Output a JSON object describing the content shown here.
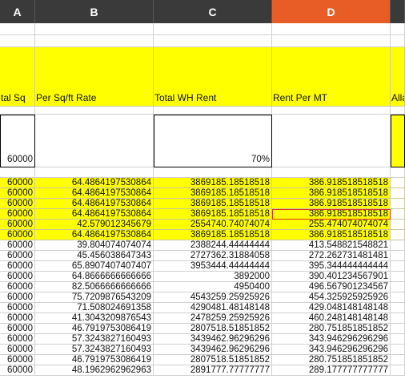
{
  "columns": [
    {
      "letter": "A",
      "selected": false
    },
    {
      "letter": "B",
      "selected": false
    },
    {
      "letter": "C",
      "selected": false
    },
    {
      "letter": "D",
      "selected": true
    }
  ],
  "headers": {
    "a": "tal Sq",
    "b": "Per Sq/ft Rate",
    "c": "Total WH Rent",
    "d": "Rent Per MT",
    "e": "Alla"
  },
  "summary": {
    "a": "60000",
    "c": "70%"
  },
  "rows": [
    {
      "a": "60000",
      "b": "64.4864197530864",
      "c": "3869185.18518518",
      "d": "386.918518518518",
      "hl": true
    },
    {
      "a": "60000",
      "b": "64.4864197530864",
      "c": "3869185.18518518",
      "d": "386.918518518518",
      "hl": true
    },
    {
      "a": "60000",
      "b": "64.4864197530864",
      "c": "3869185.18518518",
      "d": "386.918518518518",
      "hl": true
    },
    {
      "a": "60000",
      "b": "64.4864197530864",
      "c": "3869185.18518518",
      "d": "386.918518518518",
      "hl": true,
      "sel": true
    },
    {
      "a": "60000",
      "b": "42.579012345679",
      "c": "2554740.74074074",
      "d": "255.474074074074",
      "hl": true
    },
    {
      "a": "60000",
      "b": "64.4864197530864",
      "c": "3869185.18518518",
      "d": "386.918518518518",
      "hl": true
    },
    {
      "a": "60000",
      "b": "39.804074074074",
      "c": "2388244.44444444",
      "d": "413.548821548821",
      "hl": false
    },
    {
      "a": "60000",
      "b": "45.456038647343",
      "c": "2727362.31884058",
      "d": "272.262731481481",
      "hl": false
    },
    {
      "a": "60000",
      "b": "65.8907407407407",
      "c": "3953444.44444444",
      "d": "395.344444444444",
      "hl": false
    },
    {
      "a": "60000",
      "b": "64.8666666666666",
      "c": "3892000",
      "d": "390.401234567901",
      "hl": false
    },
    {
      "a": "60000",
      "b": "82.5066666666666",
      "c": "4950400",
      "d": "496.567901234567",
      "hl": false
    },
    {
      "a": "60000",
      "b": "75.7209876543209",
      "c": "4543259.25925926",
      "d": "454.325925925926",
      "hl": false
    },
    {
      "a": "60000",
      "b": "71.508024691358",
      "c": "4290481.48148148",
      "d": "429.048148148148",
      "hl": false
    },
    {
      "a": "60000",
      "b": "41.3043209876543",
      "c": "2478259.25925926",
      "d": "460.248148148148",
      "hl": false
    },
    {
      "a": "60000",
      "b": "46.7919753086419",
      "c": "2807518.51851852",
      "d": "280.751851851852",
      "hl": false
    },
    {
      "a": "60000",
      "b": "57.3243827160493",
      "c": "3439462.96296296",
      "d": "343.946296296296",
      "hl": false
    },
    {
      "a": "60000",
      "b": "57.3243827160493",
      "c": "3439462.96296296",
      "d": "343.946296296296",
      "hl": false
    },
    {
      "a": "60000",
      "b": "46.7919753086419",
      "c": "2807518.51851852",
      "d": "280.751851851852",
      "hl": false
    },
    {
      "a": "60000",
      "b": "48.1962962962963",
      "c": "2891777.77777777",
      "d": "289.177777777777",
      "hl": false
    }
  ]
}
